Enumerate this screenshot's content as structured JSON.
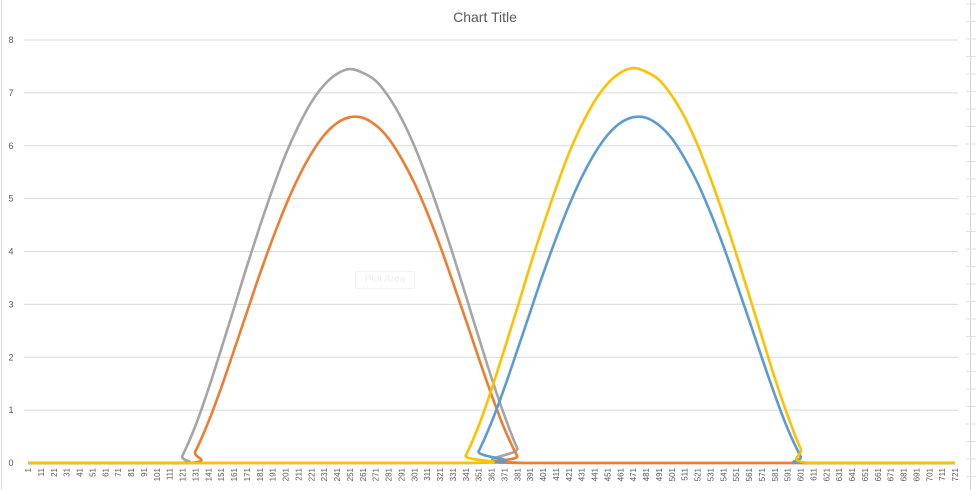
{
  "chart_data": {
    "type": "line",
    "title": "Chart Title",
    "xlabel": "",
    "ylabel": "",
    "ylim": [
      0,
      8
    ],
    "yticks": [
      "0",
      "1",
      "2",
      "3",
      "4",
      "5",
      "6",
      "7",
      "8"
    ],
    "xlim": [
      1,
      721
    ],
    "xticks_step": 10,
    "grid": "horizontal",
    "legend": "none",
    "plot_area_tooltip": "Plot Area",
    "series": [
      {
        "color": "#A5A5A5",
        "points": [
          [
            1,
            0
          ],
          [
            117,
            0
          ],
          [
            121,
            0.14
          ],
          [
            131,
            0.7
          ],
          [
            141,
            1.39
          ],
          [
            151,
            2.15
          ],
          [
            161,
            2.93
          ],
          [
            171,
            3.72
          ],
          [
            181,
            4.47
          ],
          [
            191,
            5.18
          ],
          [
            201,
            5.83
          ],
          [
            211,
            6.37
          ],
          [
            221,
            6.82
          ],
          [
            231,
            7.15
          ],
          [
            241,
            7.36
          ],
          [
            251,
            7.45
          ],
          [
            261,
            7.38
          ],
          [
            271,
            7.23
          ],
          [
            281,
            6.93
          ],
          [
            291,
            6.52
          ],
          [
            301,
            6.0
          ],
          [
            311,
            5.38
          ],
          [
            321,
            4.69
          ],
          [
            331,
            3.95
          ],
          [
            341,
            3.17
          ],
          [
            351,
            2.38
          ],
          [
            361,
            1.61
          ],
          [
            371,
            0.9
          ],
          [
            381,
            0.28
          ],
          [
            388,
            0
          ],
          [
            721,
            0
          ]
        ]
      },
      {
        "color": "#ED7D31",
        "points": [
          [
            1,
            0
          ],
          [
            125,
            0
          ],
          [
            131,
            0.22
          ],
          [
            141,
            0.77
          ],
          [
            151,
            1.42
          ],
          [
            161,
            2.13
          ],
          [
            171,
            2.85
          ],
          [
            181,
            3.57
          ],
          [
            191,
            4.24
          ],
          [
            201,
            4.86
          ],
          [
            211,
            5.4
          ],
          [
            221,
            5.85
          ],
          [
            231,
            6.2
          ],
          [
            241,
            6.43
          ],
          [
            251,
            6.54
          ],
          [
            261,
            6.53
          ],
          [
            271,
            6.39
          ],
          [
            281,
            6.14
          ],
          [
            291,
            5.76
          ],
          [
            301,
            5.3
          ],
          [
            311,
            4.74
          ],
          [
            321,
            4.11
          ],
          [
            331,
            3.42
          ],
          [
            341,
            2.71
          ],
          [
            351,
            1.99
          ],
          [
            361,
            1.29
          ],
          [
            371,
            0.65
          ],
          [
            381,
            0.13
          ],
          [
            385,
            0
          ],
          [
            721,
            0
          ]
        ]
      },
      {
        "color": "#FFC000",
        "points": [
          [
            1,
            0
          ],
          [
            337,
            0
          ],
          [
            341,
            0.14
          ],
          [
            351,
            0.7
          ],
          [
            361,
            1.39
          ],
          [
            371,
            2.15
          ],
          [
            381,
            2.93
          ],
          [
            391,
            3.73
          ],
          [
            401,
            4.48
          ],
          [
            411,
            5.19
          ],
          [
            421,
            5.85
          ],
          [
            431,
            6.39
          ],
          [
            441,
            6.84
          ],
          [
            451,
            7.17
          ],
          [
            461,
            7.38
          ],
          [
            471,
            7.47
          ],
          [
            481,
            7.4
          ],
          [
            491,
            7.25
          ],
          [
            501,
            6.95
          ],
          [
            511,
            6.54
          ],
          [
            521,
            6.02
          ],
          [
            531,
            5.39
          ],
          [
            541,
            4.7
          ],
          [
            551,
            3.96
          ],
          [
            561,
            3.18
          ],
          [
            571,
            2.39
          ],
          [
            581,
            1.61
          ],
          [
            591,
            0.9
          ],
          [
            601,
            0.28
          ],
          [
            608,
            0
          ],
          [
            721,
            0
          ]
        ]
      },
      {
        "color": "#5B9BD5",
        "points": [
          [
            1,
            0
          ],
          [
            345,
            0
          ],
          [
            351,
            0.22
          ],
          [
            361,
            0.77
          ],
          [
            371,
            1.42
          ],
          [
            381,
            2.13
          ],
          [
            391,
            2.85
          ],
          [
            401,
            3.57
          ],
          [
            411,
            4.24
          ],
          [
            421,
            4.86
          ],
          [
            431,
            5.4
          ],
          [
            441,
            5.85
          ],
          [
            451,
            6.2
          ],
          [
            461,
            6.43
          ],
          [
            471,
            6.54
          ],
          [
            481,
            6.53
          ],
          [
            491,
            6.39
          ],
          [
            501,
            6.14
          ],
          [
            511,
            5.76
          ],
          [
            521,
            5.3
          ],
          [
            531,
            4.74
          ],
          [
            541,
            4.11
          ],
          [
            551,
            3.42
          ],
          [
            561,
            2.71
          ],
          [
            571,
            1.99
          ],
          [
            581,
            1.29
          ],
          [
            591,
            0.65
          ],
          [
            601,
            0.13
          ],
          [
            605,
            0
          ],
          [
            721,
            0
          ]
        ]
      }
    ]
  }
}
